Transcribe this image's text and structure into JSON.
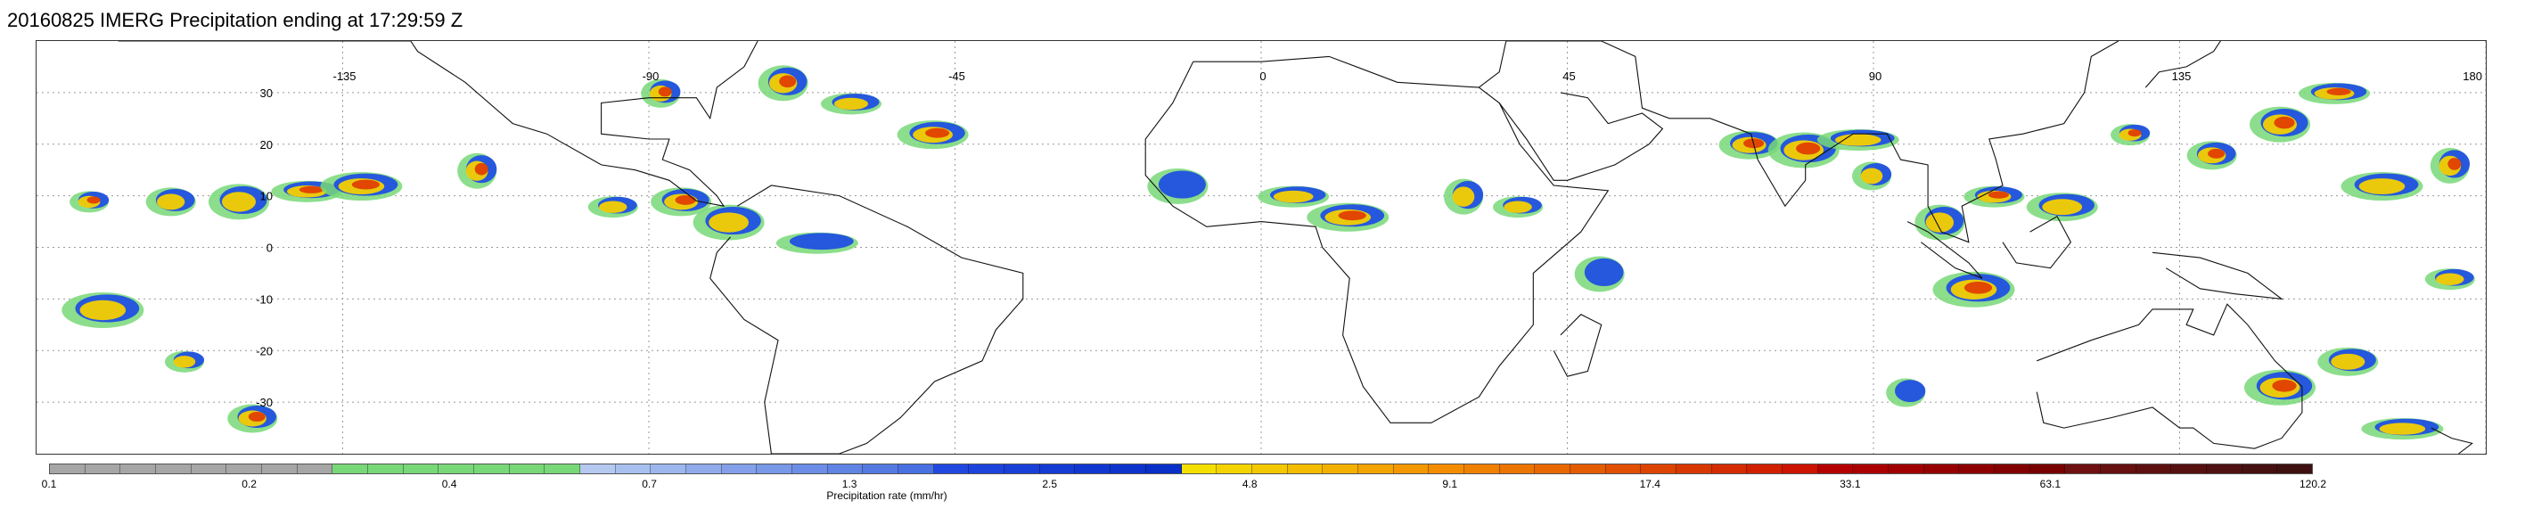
{
  "title": "20160825 IMERG Precipitation ending at 17:29:59 Z",
  "map": {
    "projection": "equirectangular",
    "lon_range": [
      -180,
      180
    ],
    "lat_range": [
      -40,
      40
    ],
    "grid": "dotted",
    "lon_ticks": [
      "-135",
      "-90",
      "-45",
      "0",
      "45",
      "90",
      "135",
      "180"
    ],
    "lat_ticks": [
      "30",
      "20",
      "10",
      "0",
      "-10",
      "-20",
      "-30"
    ],
    "precip_blobs": [
      {
        "lon": -172,
        "lat": 9,
        "intensity": 4
      },
      {
        "lon": -160,
        "lat": 9,
        "intensity": 3
      },
      {
        "lon": -150,
        "lat": 9,
        "intensity": 3
      },
      {
        "lon": -140,
        "lat": 11,
        "intensity": 4
      },
      {
        "lon": -132,
        "lat": 12,
        "intensity": 4
      },
      {
        "lon": -115,
        "lat": 15,
        "intensity": 4
      },
      {
        "lon": -95,
        "lat": 8,
        "intensity": 3
      },
      {
        "lon": -85,
        "lat": 9,
        "intensity": 4
      },
      {
        "lon": -78,
        "lat": 5,
        "intensity": 3
      },
      {
        "lon": -65,
        "lat": 1,
        "intensity": 2
      },
      {
        "lon": -88,
        "lat": 30,
        "intensity": 4
      },
      {
        "lon": -70,
        "lat": 32,
        "intensity": 4
      },
      {
        "lon": -60,
        "lat": 28,
        "intensity": 3
      },
      {
        "lon": -48,
        "lat": 22,
        "intensity": 4
      },
      {
        "lon": -170,
        "lat": -12,
        "intensity": 3
      },
      {
        "lon": -158,
        "lat": -22,
        "intensity": 3
      },
      {
        "lon": -148,
        "lat": -33,
        "intensity": 4
      },
      {
        "lon": -12,
        "lat": 12,
        "intensity": 2
      },
      {
        "lon": 5,
        "lat": 10,
        "intensity": 3
      },
      {
        "lon": 13,
        "lat": 6,
        "intensity": 4
      },
      {
        "lon": 30,
        "lat": 10,
        "intensity": 3
      },
      {
        "lon": 38,
        "lat": 8,
        "intensity": 3
      },
      {
        "lon": 72,
        "lat": 20,
        "intensity": 4
      },
      {
        "lon": 80,
        "lat": 19,
        "intensity": 4
      },
      {
        "lon": 88,
        "lat": 21,
        "intensity": 3
      },
      {
        "lon": 90,
        "lat": 14,
        "intensity": 3
      },
      {
        "lon": 100,
        "lat": 5,
        "intensity": 3
      },
      {
        "lon": 108,
        "lat": 10,
        "intensity": 4
      },
      {
        "lon": 118,
        "lat": 8,
        "intensity": 3
      },
      {
        "lon": 105,
        "lat": -8,
        "intensity": 4
      },
      {
        "lon": 128,
        "lat": 22,
        "intensity": 4
      },
      {
        "lon": 140,
        "lat": 18,
        "intensity": 4
      },
      {
        "lon": 150,
        "lat": 24,
        "intensity": 4
      },
      {
        "lon": 158,
        "lat": 30,
        "intensity": 4
      },
      {
        "lon": 165,
        "lat": 12,
        "intensity": 3
      },
      {
        "lon": 175,
        "lat": 16,
        "intensity": 4
      },
      {
        "lon": 175,
        "lat": -6,
        "intensity": 3
      },
      {
        "lon": 160,
        "lat": -22,
        "intensity": 3
      },
      {
        "lon": 150,
        "lat": -27,
        "intensity": 4
      },
      {
        "lon": 168,
        "lat": -35,
        "intensity": 3
      },
      {
        "lon": 95,
        "lat": -28,
        "intensity": 2
      },
      {
        "lon": 50,
        "lat": -5,
        "intensity": 2
      }
    ],
    "land_outlines": [
      {
        "name": "north-america",
        "pts": [
          [
            -168,
            40
          ],
          [
            -125,
            40
          ],
          [
            -124,
            38
          ],
          [
            -117,
            32
          ],
          [
            -110,
            24
          ],
          [
            -105,
            22
          ],
          [
            -97,
            16
          ],
          [
            -92,
            15
          ],
          [
            -87,
            13
          ],
          [
            -83,
            9
          ],
          [
            -79,
            8
          ],
          [
            -80,
            10
          ],
          [
            -84,
            15
          ],
          [
            -88,
            17
          ],
          [
            -87,
            21
          ],
          [
            -90,
            21
          ],
          [
            -97,
            22
          ],
          [
            -97,
            28
          ],
          [
            -90,
            29
          ],
          [
            -83,
            29
          ],
          [
            -81,
            25
          ],
          [
            -80,
            31
          ],
          [
            -76,
            35
          ],
          [
            -74,
            40
          ]
        ]
      },
      {
        "name": "south-america",
        "pts": [
          [
            -77,
            8
          ],
          [
            -72,
            12
          ],
          [
            -62,
            10
          ],
          [
            -52,
            4
          ],
          [
            -44,
            -2
          ],
          [
            -35,
            -5
          ],
          [
            -35,
            -10
          ],
          [
            -39,
            -16
          ],
          [
            -41,
            -22
          ],
          [
            -48,
            -26
          ],
          [
            -53,
            -33
          ],
          [
            -58,
            -38
          ],
          [
            -62,
            -40
          ],
          [
            -72,
            -40
          ],
          [
            -73,
            -30
          ],
          [
            -71,
            -18
          ],
          [
            -76,
            -14
          ],
          [
            -81,
            -6
          ],
          [
            -80,
            -1
          ],
          [
            -78,
            2
          ]
        ]
      },
      {
        "name": "africa",
        "pts": [
          [
            -10,
            36
          ],
          [
            0,
            36
          ],
          [
            10,
            37
          ],
          [
            20,
            32
          ],
          [
            32,
            31
          ],
          [
            35,
            28
          ],
          [
            38,
            20
          ],
          [
            43,
            12
          ],
          [
            51,
            11
          ],
          [
            47,
            3
          ],
          [
            40,
            -5
          ],
          [
            40,
            -15
          ],
          [
            35,
            -23
          ],
          [
            32,
            -29
          ],
          [
            25,
            -34
          ],
          [
            19,
            -34
          ],
          [
            15,
            -27
          ],
          [
            12,
            -17
          ],
          [
            13,
            -6
          ],
          [
            9,
            0
          ],
          [
            8,
            4
          ],
          [
            0,
            5
          ],
          [
            -8,
            4
          ],
          [
            -13,
            8
          ],
          [
            -17,
            14
          ],
          [
            -17,
            21
          ],
          [
            -13,
            28
          ],
          [
            -10,
            36
          ]
        ]
      },
      {
        "name": "madagascar",
        "pts": [
          [
            44,
            -17
          ],
          [
            47,
            -13
          ],
          [
            50,
            -15
          ],
          [
            48,
            -24
          ],
          [
            45,
            -25
          ],
          [
            43,
            -20
          ]
        ]
      },
      {
        "name": "eurasia-south",
        "pts": [
          [
            32,
            31
          ],
          [
            35,
            34
          ],
          [
            36,
            40
          ],
          [
            50,
            40
          ],
          [
            55,
            37
          ],
          [
            56,
            27
          ],
          [
            60,
            25
          ],
          [
            66,
            25
          ],
          [
            72,
            22
          ],
          [
            73,
            17
          ],
          [
            77,
            8
          ],
          [
            80,
            13
          ],
          [
            80,
            16
          ],
          [
            87,
            22
          ],
          [
            92,
            22
          ],
          [
            94,
            17
          ],
          [
            98,
            16
          ],
          [
            98,
            8
          ],
          [
            100,
            3
          ],
          [
            104,
            1
          ],
          [
            103,
            8
          ],
          [
            106,
            10
          ],
          [
            109,
            12
          ],
          [
            108,
            17
          ],
          [
            107,
            21
          ],
          [
            112,
            22
          ],
          [
            118,
            24
          ],
          [
            121,
            30
          ],
          [
            122,
            37
          ],
          [
            126,
            40
          ]
        ]
      },
      {
        "name": "arabia",
        "pts": [
          [
            35,
            28
          ],
          [
            39,
            21
          ],
          [
            43,
            13
          ],
          [
            45,
            13
          ],
          [
            52,
            16
          ],
          [
            57,
            20
          ],
          [
            59,
            23
          ],
          [
            56,
            26
          ],
          [
            51,
            24
          ],
          [
            48,
            29
          ],
          [
            44,
            30
          ]
        ]
      },
      {
        "name": "japan",
        "pts": [
          [
            130,
            31
          ],
          [
            132,
            34
          ],
          [
            136,
            35
          ],
          [
            140,
            38
          ],
          [
            141,
            40
          ],
          [
            142,
            43
          ]
        ]
      },
      {
        "name": "borneo",
        "pts": [
          [
            109,
            1
          ],
          [
            111,
            -3
          ],
          [
            116,
            -4
          ],
          [
            119,
            1
          ],
          [
            117,
            6
          ],
          [
            113,
            3
          ]
        ]
      },
      {
        "name": "sumatra",
        "pts": [
          [
            95,
            5
          ],
          [
            98,
            3
          ],
          [
            104,
            -3
          ],
          [
            106,
            -6
          ],
          [
            102,
            -4
          ],
          [
            97,
            1
          ]
        ]
      },
      {
        "name": "australia",
        "pts": [
          [
            114,
            -22
          ],
          [
            122,
            -18
          ],
          [
            129,
            -15
          ],
          [
            131,
            -12
          ],
          [
            137,
            -12
          ],
          [
            136,
            -15
          ],
          [
            140,
            -17
          ],
          [
            142,
            -11
          ],
          [
            145,
            -15
          ],
          [
            149,
            -22
          ],
          [
            153,
            -27
          ],
          [
            153,
            -32
          ],
          [
            150,
            -37
          ],
          [
            146,
            -39
          ],
          [
            140,
            -38
          ],
          [
            137,
            -35
          ],
          [
            135,
            -35
          ],
          [
            131,
            -31
          ],
          [
            125,
            -33
          ],
          [
            118,
            -35
          ],
          [
            115,
            -34
          ],
          [
            114,
            -28
          ]
        ]
      },
      {
        "name": "new-guinea",
        "pts": [
          [
            131,
            -1
          ],
          [
            138,
            -2
          ],
          [
            145,
            -5
          ],
          [
            150,
            -10
          ],
          [
            143,
            -9
          ],
          [
            138,
            -8
          ],
          [
            133,
            -4
          ]
        ]
      },
      {
        "name": "new-zealand",
        "pts": [
          [
            172,
            -35
          ],
          [
            175,
            -37
          ],
          [
            178,
            -38
          ],
          [
            176,
            -40
          ]
        ]
      }
    ]
  },
  "colorbar": {
    "axis_label": "Precipitation rate (mm/hr)",
    "colors": [
      "#a6a6a6",
      "#a6a6a6",
      "#a6a6a6",
      "#a6a6a6",
      "#a6a6a6",
      "#a6a6a6",
      "#a6a6a6",
      "#a6a6a6",
      "#78d878",
      "#78d878",
      "#78d878",
      "#78d878",
      "#78d878",
      "#78d878",
      "#78d878",
      "#b4c8f0",
      "#a8c0f0",
      "#9cb6ee",
      "#90aaec",
      "#84a0ea",
      "#7898e8",
      "#6c8ee6",
      "#6084e4",
      "#547ae2",
      "#4870e0",
      "#2048e0",
      "#1c44dc",
      "#1840d8",
      "#143cd4",
      "#1038d0",
      "#0c34cc",
      "#0830c8",
      "#f4e000",
      "#f4d400",
      "#f4c800",
      "#f4bc00",
      "#f4b000",
      "#f4a400",
      "#f49800",
      "#f48c00",
      "#f08000",
      "#ec7400",
      "#e86800",
      "#e45c00",
      "#e05000",
      "#dc4400",
      "#d83800",
      "#d42c00",
      "#d02000",
      "#cc1400",
      "#b40000",
      "#aa0000",
      "#a00000",
      "#960000",
      "#8c0000",
      "#820000",
      "#780000",
      "#6e1010",
      "#661010",
      "#5e1010",
      "#561010",
      "#4e1010",
      "#461010",
      "#3e1010"
    ],
    "labels": [
      {
        "text": "0.1",
        "frac": 0.0
      },
      {
        "text": "0.2",
        "frac": 0.0884
      },
      {
        "text": "0.4",
        "frac": 0.1768
      },
      {
        "text": "0.7",
        "frac": 0.2652
      },
      {
        "text": "1.3",
        "frac": 0.3536
      },
      {
        "text": "2.5",
        "frac": 0.442
      },
      {
        "text": "4.8",
        "frac": 0.5304
      },
      {
        "text": "9.1",
        "frac": 0.6188
      },
      {
        "text": "17.4",
        "frac": 0.7072
      },
      {
        "text": "33.1",
        "frac": 0.7956
      },
      {
        "text": "63.1",
        "frac": 0.884
      },
      {
        "text": "120.2",
        "frac": 1.0
      }
    ]
  },
  "intensity_colors": [
    "#78d878",
    "#2050e0",
    "#f4d000",
    "#e04000",
    "#7a1010"
  ]
}
